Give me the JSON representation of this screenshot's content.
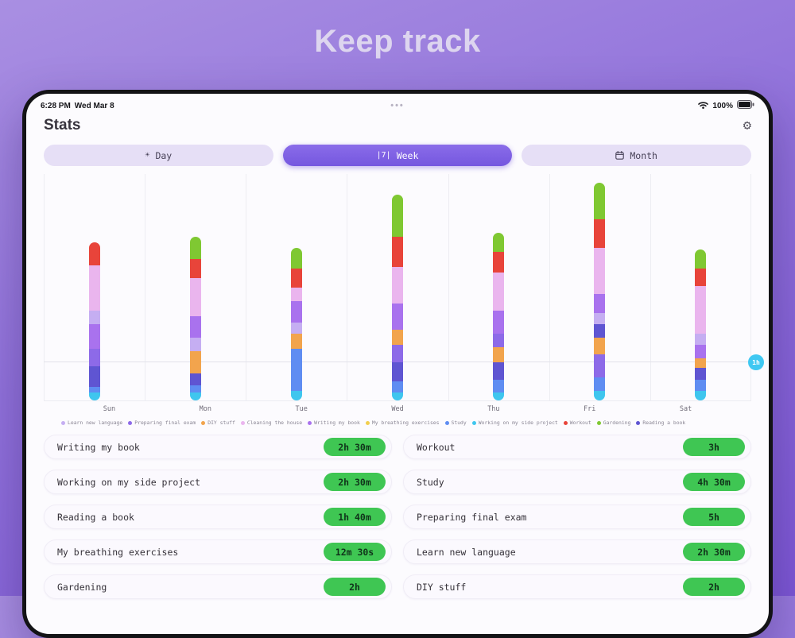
{
  "hero": {
    "title": "Keep track"
  },
  "device": {
    "status_bar": {
      "time": "6:28 PM",
      "date": "Wed Mar 8",
      "menu_dots_icon": "•••",
      "battery_pct": "100%"
    },
    "header": {
      "title": "Stats",
      "settings_icon": "⚙"
    },
    "tabs": {
      "items": [
        {
          "label": "Day",
          "icon": "☀",
          "selected": false
        },
        {
          "label": "Week",
          "icon": "|7|",
          "selected": true
        },
        {
          "label": "Month",
          "icon": "calendar",
          "selected": false
        }
      ]
    }
  },
  "chart_data": {
    "type": "bar",
    "stacked": true,
    "categories": [
      "Sun",
      "Mon",
      "Tue",
      "Wed",
      "Thu",
      "Fri",
      "Sat"
    ],
    "unit": "hours",
    "ylim": [
      0,
      6
    ],
    "grid": "vertical-day-separators",
    "y_gridline": {
      "label": "1h",
      "hours": 1,
      "badge_color": "#3fc8f2"
    },
    "legend_position": "bottom",
    "activities": [
      {
        "key": "learn-new-language",
        "label": "Learn new language",
        "color": "#c5aef2"
      },
      {
        "key": "preparing-final-exam",
        "label": "Preparing final exam",
        "color": "#8d6ae8"
      },
      {
        "key": "diy-stuff",
        "label": "DIY stuff",
        "color": "#f2a44d"
      },
      {
        "key": "cleaning-the-house",
        "label": "Cleaning the house",
        "color": "#eab5ee"
      },
      {
        "key": "writing-my-book",
        "label": "Writing my book",
        "color": "#a972ee"
      },
      {
        "key": "my-breathing-exercises",
        "label": "My breathing exercises",
        "color": "#f2cf4e"
      },
      {
        "key": "study",
        "label": "Study",
        "color": "#5f8df2"
      },
      {
        "key": "working-on-my-side-project",
        "label": "Working on my side project",
        "color": "#3fc6ee"
      },
      {
        "key": "workout",
        "label": "Workout",
        "color": "#e8443a"
      },
      {
        "key": "gardening",
        "label": "Gardening",
        "color": "#7fc832"
      },
      {
        "key": "reading-a-book",
        "label": "Reading a book",
        "color": "#5f55d2"
      }
    ],
    "days": [
      {
        "day": "Sun",
        "segments": [
          [
            "working-on-my-side-project",
            0.2
          ],
          [
            "study",
            0.15
          ],
          [
            "reading-a-book",
            0.55
          ],
          [
            "preparing-final-exam",
            0.45
          ],
          [
            "writing-my-book",
            0.65
          ],
          [
            "learn-new-language",
            0.35
          ],
          [
            "cleaning-the-house",
            1.2
          ],
          [
            "workout",
            0.6
          ]
        ]
      },
      {
        "day": "Mon",
        "segments": [
          [
            "working-on-my-side-project",
            0.2
          ],
          [
            "study",
            0.2
          ],
          [
            "reading-a-book",
            0.3
          ],
          [
            "diy-stuff",
            0.6
          ],
          [
            "learn-new-language",
            0.35
          ],
          [
            "writing-my-book",
            0.55
          ],
          [
            "cleaning-the-house",
            1.0
          ],
          [
            "workout",
            0.5
          ],
          [
            "gardening",
            0.6
          ]
        ]
      },
      {
        "day": "Tue",
        "segments": [
          [
            "working-on-my-side-project",
            0.25
          ],
          [
            "study",
            1.1
          ],
          [
            "diy-stuff",
            0.4
          ],
          [
            "learn-new-language",
            0.3
          ],
          [
            "writing-my-book",
            0.55
          ],
          [
            "cleaning-the-house",
            0.35
          ],
          [
            "workout",
            0.5
          ],
          [
            "gardening",
            0.55
          ]
        ]
      },
      {
        "day": "Wed",
        "segments": [
          [
            "working-on-my-side-project",
            0.2
          ],
          [
            "study",
            0.3
          ],
          [
            "reading-a-book",
            0.5
          ],
          [
            "preparing-final-exam",
            0.45
          ],
          [
            "diy-stuff",
            0.4
          ],
          [
            "writing-my-book",
            0.7
          ],
          [
            "cleaning-the-house",
            0.95
          ],
          [
            "workout",
            0.8
          ],
          [
            "gardening",
            1.1
          ]
        ]
      },
      {
        "day": "Thu",
        "segments": [
          [
            "working-on-my-side-project",
            0.2
          ],
          [
            "study",
            0.35
          ],
          [
            "reading-a-book",
            0.45
          ],
          [
            "diy-stuff",
            0.4
          ],
          [
            "preparing-final-exam",
            0.35
          ],
          [
            "writing-my-book",
            0.6
          ],
          [
            "cleaning-the-house",
            1.0
          ],
          [
            "workout",
            0.55
          ],
          [
            "gardening",
            0.5
          ]
        ]
      },
      {
        "day": "Fri",
        "segments": [
          [
            "working-on-my-side-project",
            0.25
          ],
          [
            "study",
            0.35
          ],
          [
            "preparing-final-exam",
            0.6
          ],
          [
            "diy-stuff",
            0.45
          ],
          [
            "reading-a-book",
            0.35
          ],
          [
            "learn-new-language",
            0.3
          ],
          [
            "writing-my-book",
            0.5
          ],
          [
            "cleaning-the-house",
            1.2
          ],
          [
            "workout",
            0.75
          ],
          [
            "gardening",
            0.95
          ]
        ]
      },
      {
        "day": "Sat",
        "segments": [
          [
            "working-on-my-side-project",
            0.25
          ],
          [
            "study",
            0.3
          ],
          [
            "reading-a-book",
            0.3
          ],
          [
            "diy-stuff",
            0.25
          ],
          [
            "writing-my-book",
            0.35
          ],
          [
            "learn-new-language",
            0.3
          ],
          [
            "cleaning-the-house",
            1.25
          ],
          [
            "workout",
            0.45
          ],
          [
            "gardening",
            0.5
          ]
        ]
      }
    ]
  },
  "summary": {
    "columns": [
      [
        {
          "label": "Writing my book",
          "duration": "2h 30m"
        },
        {
          "label": "Working on my side project",
          "duration": "2h 30m"
        },
        {
          "label": "Reading a book",
          "duration": "1h 40m"
        },
        {
          "label": "My breathing exercises",
          "duration": "12m 30s"
        },
        {
          "label": "Gardening",
          "duration": "2h"
        }
      ],
      [
        {
          "label": "Workout",
          "duration": "3h"
        },
        {
          "label": "Study",
          "duration": "4h 30m"
        },
        {
          "label": "Preparing final exam",
          "duration": "5h"
        },
        {
          "label": "Learn new language",
          "duration": "2h 30m"
        },
        {
          "label": "DIY stuff",
          "duration": "2h"
        }
      ]
    ]
  }
}
